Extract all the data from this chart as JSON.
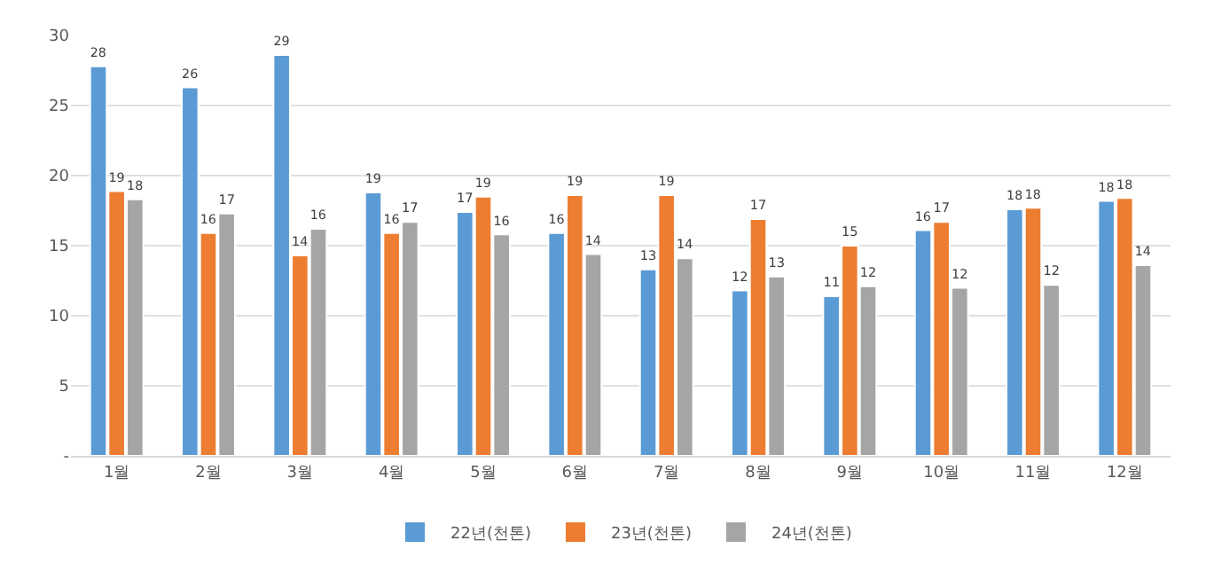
{
  "chart_data": {
    "type": "bar",
    "categories": [
      "1월",
      "2월",
      "3월",
      "4월",
      "5월",
      "6월",
      "7월",
      "8월",
      "9월",
      "10월",
      "11월",
      "12월"
    ],
    "series": [
      {
        "name": "22년(천톤)",
        "color": "#5b9bd5",
        "values": [
          27.8,
          26.3,
          28.6,
          18.8,
          17.4,
          15.9,
          13.3,
          11.8,
          11.4,
          16.1,
          17.6,
          18.2
        ],
        "value_labels": [
          "28",
          "26",
          "29",
          "19",
          "17",
          "16",
          "13",
          "12",
          "11",
          "16",
          "18",
          "18"
        ]
      },
      {
        "name": "23년(천톤)",
        "color": "#ed7d31",
        "values": [
          18.9,
          15.9,
          14.3,
          15.9,
          18.5,
          18.6,
          18.6,
          16.9,
          15.0,
          16.7,
          17.7,
          18.4
        ],
        "value_labels": [
          "19",
          "16",
          "14",
          "16",
          "19",
          "19",
          "19",
          "17",
          "15",
          "17",
          "18",
          "18"
        ]
      },
      {
        "name": "24년(천톤)",
        "color": "#a5a5a5",
        "values": [
          18.3,
          17.3,
          16.2,
          16.7,
          15.8,
          14.4,
          14.1,
          12.8,
          12.1,
          12.0,
          12.2,
          13.6
        ],
        "value_labels": [
          "18",
          "17",
          "16",
          "17",
          "16",
          "14",
          "14",
          "13",
          "12",
          "12",
          "12",
          "14"
        ]
      }
    ],
    "ylim": [
      0,
      30
    ],
    "yticks": [
      {
        "value": 0,
        "label": "-"
      },
      5,
      10,
      15,
      20,
      25,
      30
    ],
    "grid": "y",
    "legend": "bottom"
  }
}
